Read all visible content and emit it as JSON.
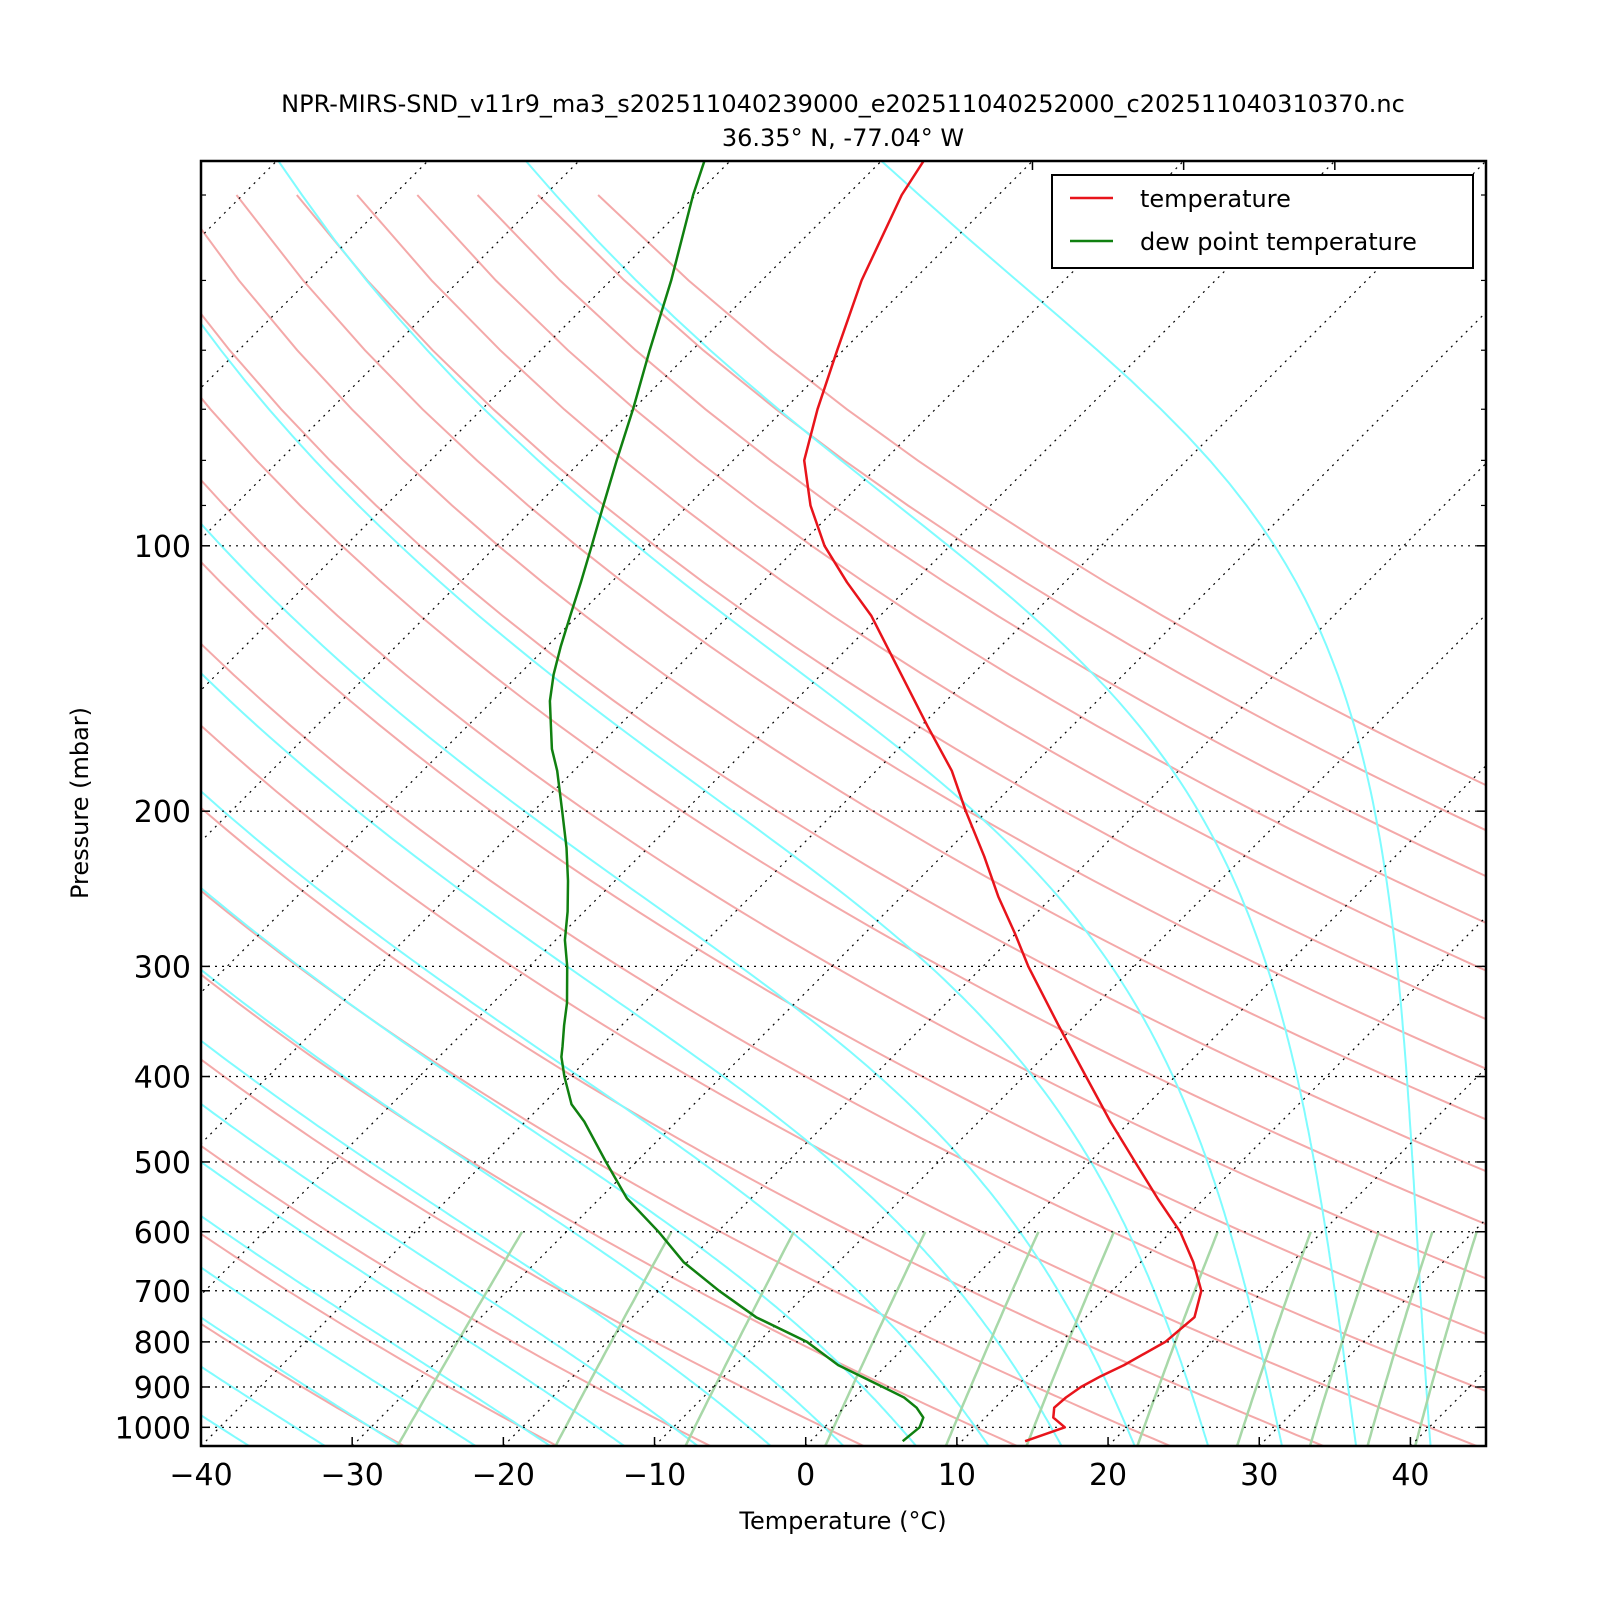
{
  "chart_data": {
    "type": "line",
    "title": "NPR-MIRS-SND_v11r9_ma3_s202511040239000_e202511040252000_c202511040310370.nc",
    "subtitle": "36.35° N, -77.04° W",
    "xlabel": "Temperature (°C)",
    "ylabel": "Pressure (mbar)",
    "xlim": [
      -40,
      45
    ],
    "ylim": [
      1050,
      36.6
    ],
    "y_scale": "log",
    "x_ticks": [
      -40,
      -30,
      -20,
      -10,
      0,
      10,
      20,
      30,
      40
    ],
    "x_tick_labels": [
      "−40",
      "−30",
      "−20",
      "−10",
      "0",
      "10",
      "20",
      "30",
      "40"
    ],
    "y_ticks": [
      100,
      200,
      300,
      400,
      500,
      600,
      700,
      800,
      900,
      1000
    ],
    "y_tick_labels": [
      "100",
      "200",
      "300",
      "400",
      "500",
      "600",
      "700",
      "800",
      "900",
      "1000"
    ],
    "legend_position": "top-right",
    "grid": "dotted isobars at labeled pressures, dotted skewed isotherms",
    "skew_lines": {
      "dry_adiabats_color": "#f4a9a9",
      "moist_adiabats_color": "#7ffcff",
      "mixing_ratio_color": "#a8d8a8",
      "isotherm_color": "#000000"
    },
    "series": [
      {
        "name": "temperature",
        "color": "#e8141b",
        "points": [
          [
            1037,
            14.2
          ],
          [
            1000,
            15.9
          ],
          [
            975,
            14.5
          ],
          [
            950,
            13.9
          ],
          [
            925,
            14.0
          ],
          [
            900,
            14.3
          ],
          [
            875,
            14.9
          ],
          [
            850,
            15.7
          ],
          [
            800,
            16.9
          ],
          [
            750,
            17.2
          ],
          [
            700,
            15.9
          ],
          [
            650,
            13.5
          ],
          [
            600,
            10.6
          ],
          [
            550,
            6.9
          ],
          [
            500,
            3.0
          ],
          [
            450,
            -1.3
          ],
          [
            400,
            -5.9
          ],
          [
            350,
            -11.1
          ],
          [
            300,
            -17.0
          ],
          [
            275,
            -20.1
          ],
          [
            250,
            -23.6
          ],
          [
            225,
            -27.2
          ],
          [
            200,
            -31.4
          ],
          [
            180,
            -35.0
          ],
          [
            160,
            -39.6
          ],
          [
            140,
            -44.7
          ],
          [
            120,
            -50.6
          ],
          [
            110,
            -54.4
          ],
          [
            100,
            -58.3
          ],
          [
            90,
            -61.9
          ],
          [
            80,
            -65.3
          ],
          [
            70,
            -67.8
          ],
          [
            60,
            -70.4
          ],
          [
            50,
            -73.4
          ],
          [
            40,
            -76.4
          ],
          [
            36.6,
            -77.2
          ]
        ]
      },
      {
        "name": "dew point temperature",
        "color": "#108010",
        "points": [
          [
            1037,
            6.1
          ],
          [
            1000,
            6.3
          ],
          [
            975,
            5.9
          ],
          [
            950,
            4.8
          ],
          [
            925,
            3.3
          ],
          [
            900,
            1.2
          ],
          [
            850,
            -3.2
          ],
          [
            800,
            -6.8
          ],
          [
            750,
            -11.8
          ],
          [
            700,
            -16.0
          ],
          [
            650,
            -20.2
          ],
          [
            600,
            -23.9
          ],
          [
            550,
            -28.2
          ],
          [
            500,
            -32.0
          ],
          [
            450,
            -36.1
          ],
          [
            430,
            -38.1
          ],
          [
            400,
            -40.4
          ],
          [
            380,
            -41.9
          ],
          [
            370,
            -42.5
          ],
          [
            350,
            -43.8
          ],
          [
            330,
            -45.1
          ],
          [
            300,
            -47.5
          ],
          [
            280,
            -49.4
          ],
          [
            260,
            -51.1
          ],
          [
            240,
            -53.1
          ],
          [
            220,
            -55.4
          ],
          [
            200,
            -58.1
          ],
          [
            180,
            -61.1
          ],
          [
            170,
            -62.9
          ],
          [
            160,
            -64.5
          ],
          [
            150,
            -66.2
          ],
          [
            140,
            -67.7
          ],
          [
            130,
            -69.1
          ],
          [
            120,
            -70.5
          ],
          [
            110,
            -72.0
          ],
          [
            100,
            -73.7
          ],
          [
            90,
            -75.6
          ],
          [
            80,
            -77.7
          ],
          [
            70,
            -80.0
          ],
          [
            60,
            -82.8
          ],
          [
            50,
            -86.0
          ],
          [
            40,
            -90.2
          ],
          [
            36.6,
            -91.7
          ]
        ]
      }
    ]
  }
}
